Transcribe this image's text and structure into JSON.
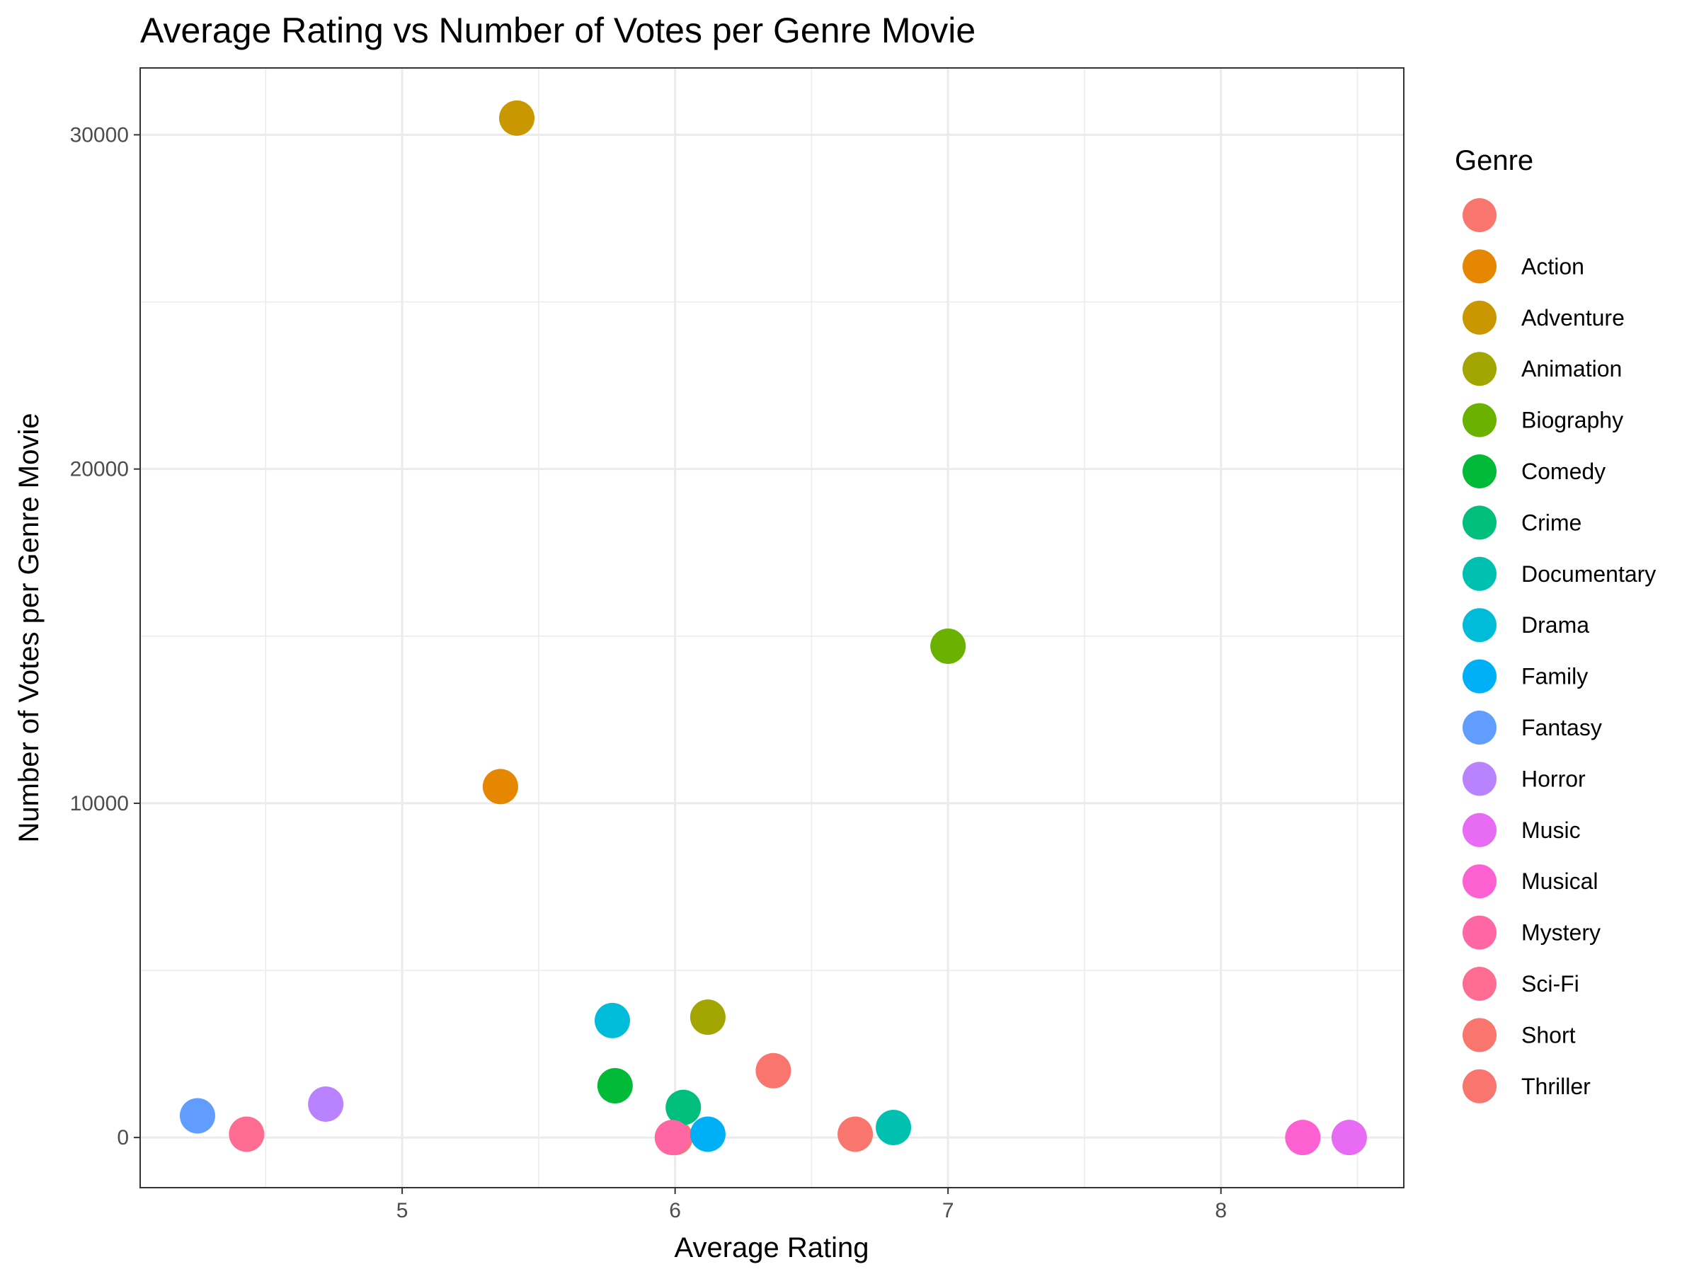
{
  "chart_data": {
    "type": "scatter",
    "title": "Average Rating vs Number of Votes per Genre Movie",
    "xlabel": "Average Rating",
    "ylabel": "Number of Votes per Genre Movie",
    "xlim": [
      4.04,
      8.67
    ],
    "ylim": [
      -1500,
      32000
    ],
    "x_ticks": [
      5,
      6,
      7,
      8
    ],
    "x_tick_labels": [
      "5",
      "6",
      "7",
      "8"
    ],
    "y_ticks": [
      0,
      10000,
      20000,
      30000
    ],
    "y_tick_labels": [
      "0",
      "10000",
      "20000",
      "30000"
    ],
    "grid": true,
    "legend": {
      "title": "Genre",
      "position": "right"
    },
    "series": [
      {
        "name": "",
        "color": "#F8766D",
        "points": [
          {
            "x": 6.0,
            "y": 0
          }
        ]
      },
      {
        "name": "Action",
        "color": "#E58700",
        "points": [
          {
            "x": 5.36,
            "y": 10500
          }
        ]
      },
      {
        "name": "Adventure",
        "color": "#C99800",
        "points": [
          {
            "x": 5.42,
            "y": 30500
          }
        ]
      },
      {
        "name": "Animation",
        "color": "#A3A500",
        "points": [
          {
            "x": 6.12,
            "y": 3600
          }
        ]
      },
      {
        "name": "Biography",
        "color": "#6BB100",
        "points": [
          {
            "x": 7.0,
            "y": 14700
          }
        ]
      },
      {
        "name": "Comedy",
        "color": "#00BA38",
        "points": [
          {
            "x": 5.78,
            "y": 1550
          }
        ]
      },
      {
        "name": "Crime",
        "color": "#00BF7D",
        "points": [
          {
            "x": 6.03,
            "y": 900
          }
        ]
      },
      {
        "name": "Documentary",
        "color": "#00C0AF",
        "points": [
          {
            "x": 6.8,
            "y": 300
          }
        ]
      },
      {
        "name": "Drama",
        "color": "#00BCD8",
        "points": [
          {
            "x": 5.77,
            "y": 3500
          }
        ]
      },
      {
        "name": "Family",
        "color": "#00B0F6",
        "points": [
          {
            "x": 6.12,
            "y": 100
          }
        ]
      },
      {
        "name": "Fantasy",
        "color": "#619CFF",
        "points": [
          {
            "x": 4.25,
            "y": 650
          }
        ]
      },
      {
        "name": "Horror",
        "color": "#B983FF",
        "points": [
          {
            "x": 4.72,
            "y": 1000
          }
        ]
      },
      {
        "name": "Music",
        "color": "#E76BF3",
        "points": [
          {
            "x": 8.47,
            "y": 0
          }
        ]
      },
      {
        "name": "Musical",
        "color": "#FD61D1",
        "points": [
          {
            "x": 8.3,
            "y": 0
          }
        ]
      },
      {
        "name": "Mystery",
        "color": "#FF67A4",
        "points": [
          {
            "x": 5.99,
            "y": 0
          }
        ]
      },
      {
        "name": "Sci-Fi",
        "color": "#FF6C91",
        "points": [
          {
            "x": 4.43,
            "y": 100
          }
        ]
      },
      {
        "name": "Short",
        "color": "#F8766D",
        "points": [
          {
            "x": 6.66,
            "y": 100
          }
        ]
      },
      {
        "name": "Thriller",
        "color": "#F8766D",
        "points": [
          {
            "x": 6.36,
            "y": 2000
          }
        ]
      }
    ],
    "legend_entries": [
      {
        "label": "",
        "color": "#F8766D"
      },
      {
        "label": "Action",
        "color": "#E58700"
      },
      {
        "label": "Adventure",
        "color": "#C99800"
      },
      {
        "label": "Animation",
        "color": "#A3A500"
      },
      {
        "label": "Biography",
        "color": "#6BB100"
      },
      {
        "label": "Comedy",
        "color": "#00BA38"
      },
      {
        "label": "Crime",
        "color": "#00BF7D"
      },
      {
        "label": "Documentary",
        "color": "#00C0AF"
      },
      {
        "label": "Drama",
        "color": "#00BCD8"
      },
      {
        "label": "Family",
        "color": "#00B0F6"
      },
      {
        "label": "Fantasy",
        "color": "#619CFF"
      },
      {
        "label": "Horror",
        "color": "#B983FF"
      },
      {
        "label": "Music",
        "color": "#E76BF3"
      },
      {
        "label": "Musical",
        "color": "#FD61D1"
      },
      {
        "label": "Mystery",
        "color": "#FF67A4"
      },
      {
        "label": "Sci-Fi",
        "color": "#FF6C91"
      },
      {
        "label": "Short",
        "color": "#F8766D"
      },
      {
        "label": "Thriller",
        "color": "#F8766D"
      }
    ]
  }
}
